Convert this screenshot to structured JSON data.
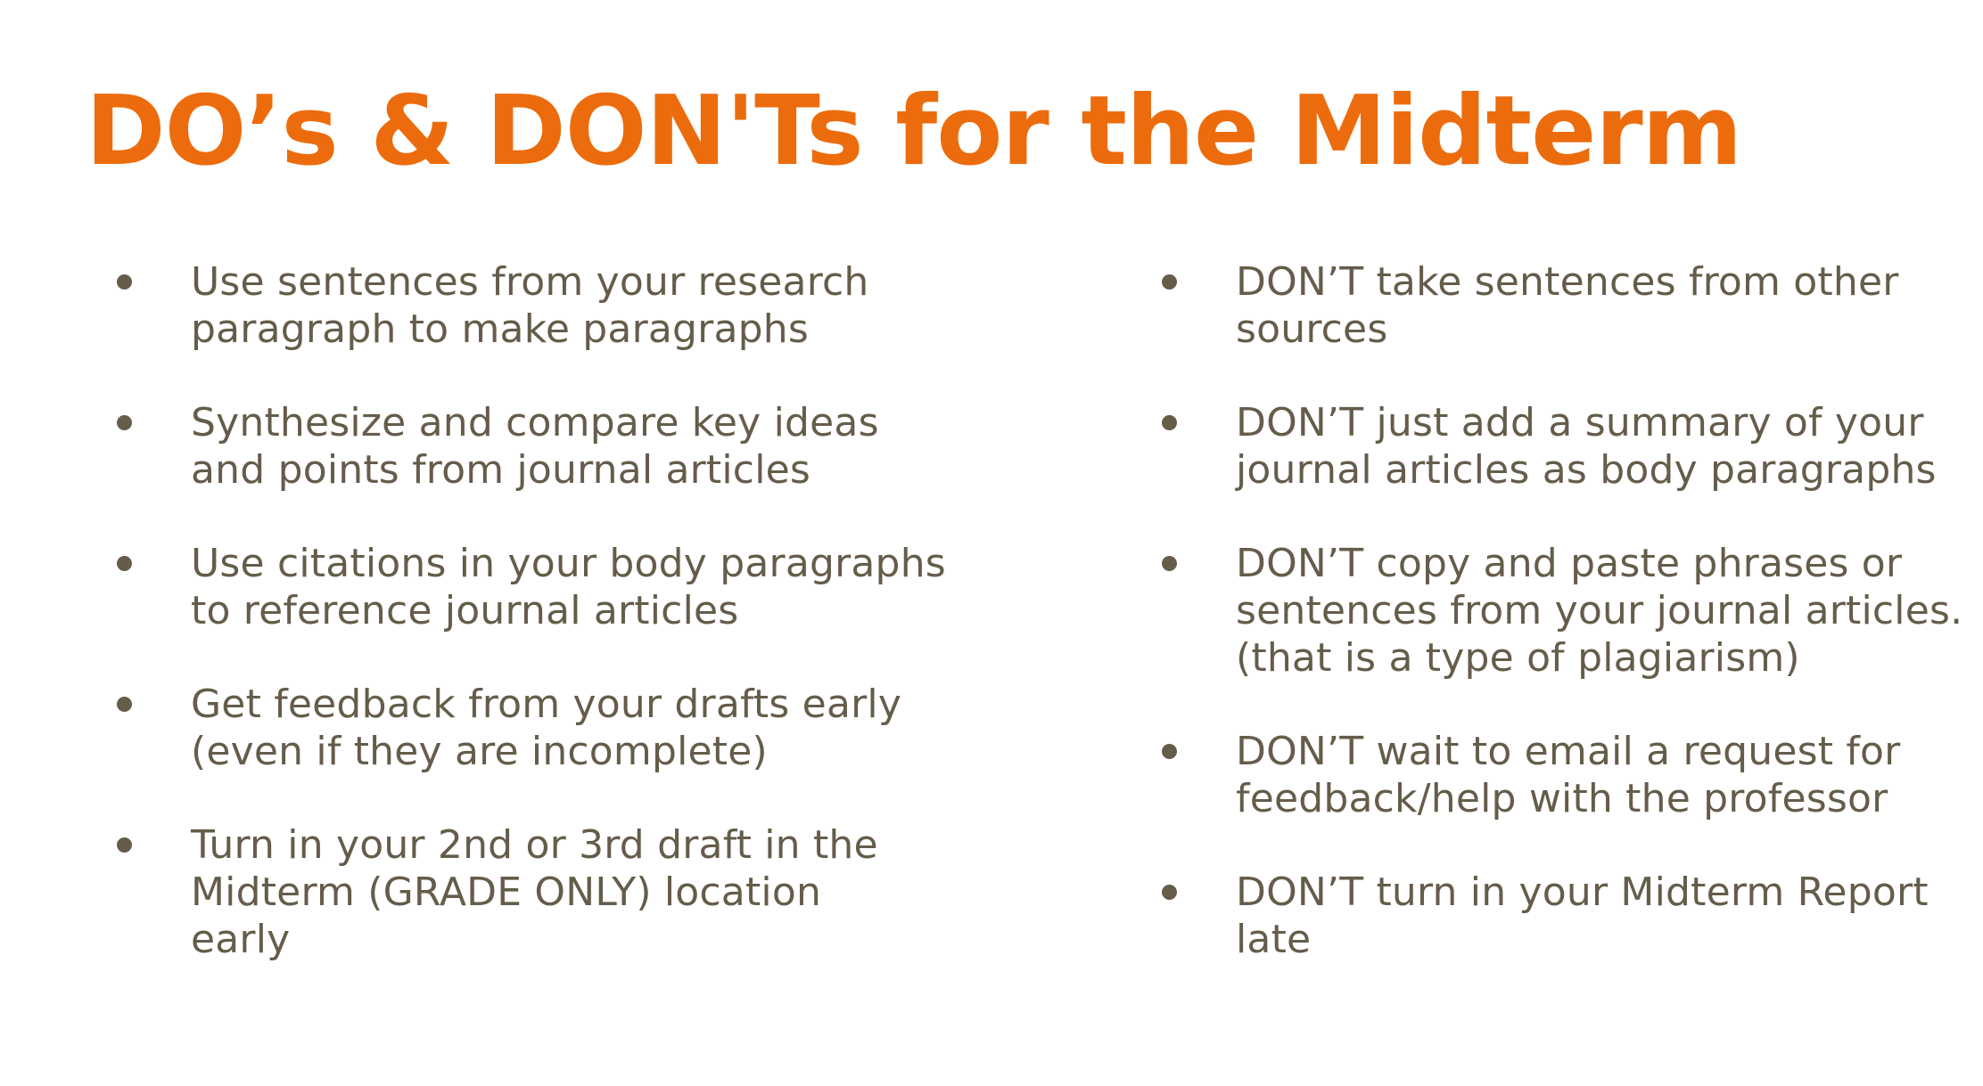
{
  "slide": {
    "title": "DO’s & DON'Ts for the Midterm",
    "colors": {
      "title": "#ec6c0d",
      "body_text": "#655c4a",
      "background": "#ffffff"
    },
    "dos": [
      {
        "line1": "Use sentences from your research",
        "line2": "paragraph to make paragraphs"
      },
      {
        "line1": "Synthesize and compare key ideas",
        "line2": "and points from journal articles"
      },
      {
        "line1": "Use citations in your body paragraphs",
        "line2": "to reference journal articles"
      },
      {
        "line1": "Get feedback from your drafts early",
        "line2": "(even if they are incomplete)"
      },
      {
        "line1": "Turn in your 2nd or 3rd draft in the",
        "line2": "Midterm (GRADE ONLY) location",
        "line3": "early"
      }
    ],
    "donts": [
      {
        "line1": "DON’T take sentences from other",
        "line2": "sources"
      },
      {
        "line1": "DON’T just add a summary of your",
        "line2": "journal articles as body paragraphs"
      },
      {
        "line1": "DON’T copy and paste phrases or",
        "line2": "sentences from your journal articles.",
        "line3": "(that is a type of plagiarism)"
      },
      {
        "line1": "DON’T wait to email a request for",
        "line2": "feedback/help with the professor"
      },
      {
        "line1": "DON’T turn in your Midterm Report",
        "line2": "late"
      }
    ]
  }
}
